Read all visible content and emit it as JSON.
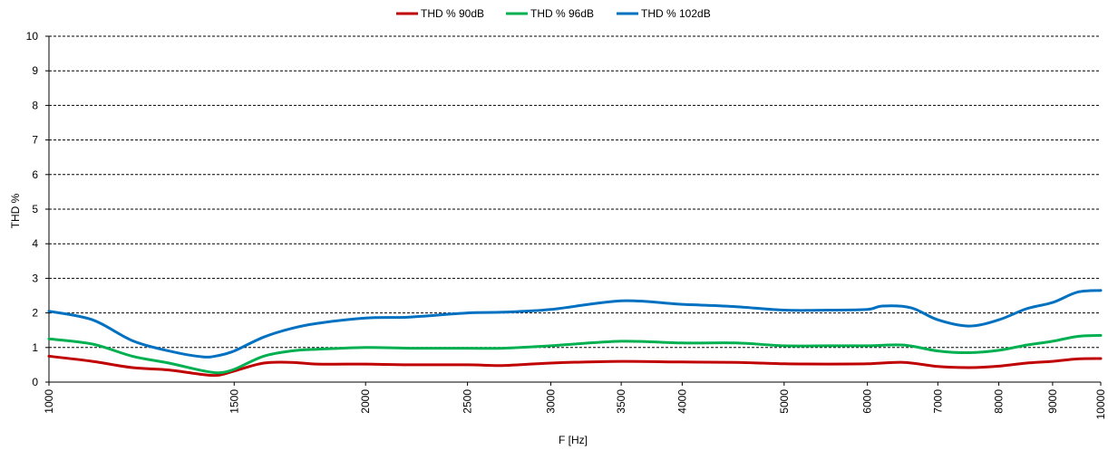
{
  "chart_data": {
    "type": "line",
    "title": "",
    "xlabel": "F [Hz]",
    "ylabel": "THD %",
    "x_scale": "log",
    "xlim": [
      1000,
      10000
    ],
    "ylim": [
      0,
      10
    ],
    "y_ticks": [
      0,
      1,
      2,
      3,
      4,
      5,
      6,
      7,
      8,
      9,
      10
    ],
    "x_ticks": [
      1000,
      1500,
      2000,
      2500,
      3000,
      3500,
      4000,
      5000,
      6000,
      7000,
      8000,
      9000,
      10000
    ],
    "grid": "horizontal-dashed",
    "legend_position": "top-center",
    "series": [
      {
        "name": "THD % 90dB",
        "color": "#c00000",
        "x": [
          1000,
          1100,
          1200,
          1300,
          1400,
          1450,
          1500,
          1600,
          1700,
          1800,
          2000,
          2200,
          2500,
          2700,
          3000,
          3500,
          4000,
          4500,
          5000,
          5500,
          6000,
          6500,
          7000,
          7500,
          8000,
          8500,
          9000,
          9500,
          10000
        ],
        "y": [
          0.75,
          0.6,
          0.42,
          0.35,
          0.22,
          0.2,
          0.32,
          0.55,
          0.57,
          0.52,
          0.52,
          0.5,
          0.5,
          0.48,
          0.55,
          0.6,
          0.58,
          0.57,
          0.53,
          0.52,
          0.53,
          0.57,
          0.45,
          0.42,
          0.46,
          0.55,
          0.6,
          0.67,
          0.68
        ]
      },
      {
        "name": "THD % 96dB",
        "color": "#00b050",
        "x": [
          1000,
          1100,
          1200,
          1300,
          1400,
          1450,
          1500,
          1600,
          1700,
          1800,
          2000,
          2200,
          2500,
          2700,
          3000,
          3500,
          4000,
          4500,
          5000,
          5500,
          6000,
          6500,
          7000,
          7500,
          8000,
          8500,
          9000,
          9500,
          10000
        ],
        "y": [
          1.25,
          1.1,
          0.75,
          0.55,
          0.33,
          0.27,
          0.37,
          0.75,
          0.9,
          0.95,
          1.0,
          0.98,
          0.98,
          0.98,
          1.05,
          1.18,
          1.13,
          1.13,
          1.05,
          1.05,
          1.05,
          1.07,
          0.9,
          0.85,
          0.92,
          1.07,
          1.18,
          1.32,
          1.35
        ]
      },
      {
        "name": "THD % 102dB",
        "color": "#0070c0",
        "x": [
          1000,
          1100,
          1200,
          1300,
          1400,
          1450,
          1500,
          1600,
          1700,
          1800,
          2000,
          2200,
          2500,
          2700,
          3000,
          3500,
          4000,
          4500,
          5000,
          5500,
          6000,
          6200,
          6600,
          7000,
          7500,
          8000,
          8500,
          9000,
          9500,
          10000
        ],
        "y": [
          2.05,
          1.8,
          1.2,
          0.9,
          0.73,
          0.77,
          0.9,
          1.3,
          1.55,
          1.7,
          1.85,
          1.88,
          2.0,
          2.02,
          2.1,
          2.35,
          2.25,
          2.18,
          2.08,
          2.08,
          2.1,
          2.2,
          2.15,
          1.8,
          1.62,
          1.8,
          2.12,
          2.3,
          2.6,
          2.65
        ]
      }
    ]
  }
}
